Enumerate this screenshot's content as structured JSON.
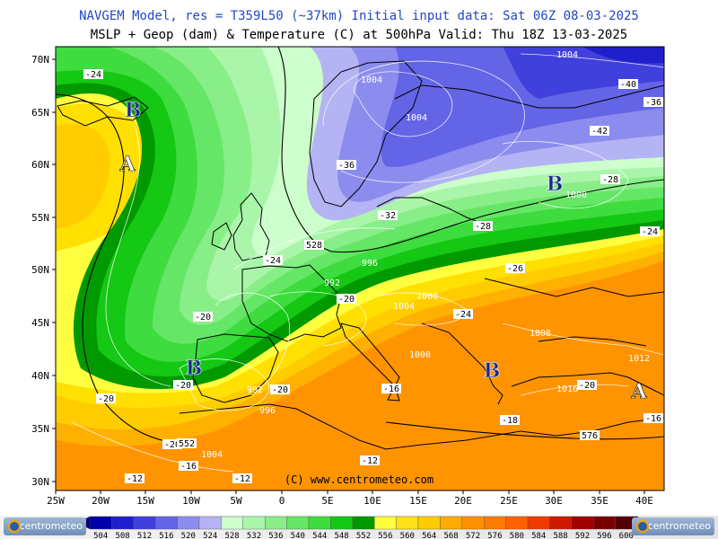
{
  "header": {
    "title_line1": "NAVGEM Model, res = T359L50 (~37km)    Initial input data: Sat 06Z 08-03-2025",
    "title_line2": "MSLP + Geop (dam) & Temperature (C) at 500hPa  Valid: Thu 18Z 13-03-2025"
  },
  "copyright": "(C) www.centrometeo.com",
  "branding": {
    "left": "centrometeo",
    "right": "centrometeo"
  },
  "axes": {
    "lat_labels": [
      "70N",
      "65N",
      "60N",
      "55N",
      "50N",
      "45N",
      "40N",
      "35N",
      "30N"
    ],
    "lon_labels": [
      "25W",
      "20W",
      "15W",
      "10W",
      "5W",
      "0",
      "5E",
      "10E",
      "15E",
      "20E",
      "25E",
      "30E",
      "35E",
      "40E"
    ]
  },
  "color_scale": {
    "values": [
      "504",
      "508",
      "512",
      "516",
      "520",
      "524",
      "528",
      "532",
      "536",
      "540",
      "544",
      "548",
      "552",
      "556",
      "560",
      "564",
      "568",
      "572",
      "576",
      "580",
      "584",
      "588",
      "592",
      "596",
      "600"
    ],
    "colors": [
      "#0000aa",
      "#1f1fcc",
      "#4040dd",
      "#6464e6",
      "#8c8cee",
      "#b4b4f4",
      "#ccffcc",
      "#aaf5aa",
      "#88ee88",
      "#66e666",
      "#3edc3e",
      "#14c814",
      "#009900",
      "#ffff40",
      "#ffe01a",
      "#ffcc00",
      "#ffaa00",
      "#ff9000",
      "#ff7a00",
      "#ff6000",
      "#ee3b00",
      "#cc1a00",
      "#a00000",
      "#7a0000",
      "#500000"
    ]
  },
  "pressure_centers": [
    {
      "letter": "B",
      "type": "low"
    },
    {
      "letter": "A",
      "type": "high"
    },
    {
      "letter": "B",
      "type": "low"
    },
    {
      "letter": "B",
      "type": "low"
    },
    {
      "letter": "A",
      "type": "high"
    },
    {
      "letter": "B",
      "type": "low"
    }
  ],
  "temperature_labels": [
    "-24",
    "-36",
    "-32",
    "-40",
    "-36",
    "-42",
    "-28",
    "-28",
    "-24",
    "-24",
    "-26",
    "-20",
    "-20",
    "-24",
    "-20",
    "-20",
    "-20",
    "-20",
    "-18",
    "-16",
    "-16",
    "-12",
    "-12",
    "-12",
    "-20",
    "-16"
  ],
  "isobar_labels": [
    "1004",
    "1004",
    "1000",
    "1004",
    "1000",
    "1004",
    "1008",
    "1012",
    "1016",
    "996",
    "992",
    "992",
    "996",
    "1004",
    "1000"
  ],
  "geopotential_labels": [
    "528",
    "552",
    "576"
  ],
  "colors": {
    "title_blue": "#2446c6",
    "sea_green": "#44c844",
    "land_line": "#000000"
  }
}
